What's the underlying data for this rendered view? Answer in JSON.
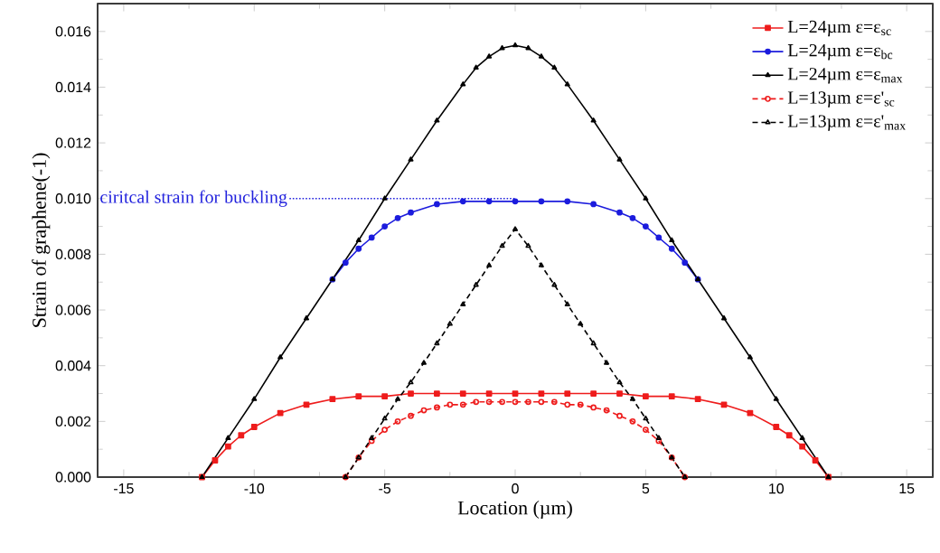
{
  "chart_data": {
    "type": "line",
    "xlabel": "Location (µm)",
    "ylabel": "Strain of graphene(-1)",
    "xlim": [
      -16,
      16
    ],
    "xticks": [
      -15,
      -10,
      -5,
      0,
      5,
      10,
      15
    ],
    "ylim": [
      0,
      0.017
    ],
    "yticks": [
      {
        "value": 0,
        "label": "0.000"
      },
      {
        "value": 0.002,
        "label": "0.002"
      },
      {
        "value": 0.004,
        "label": "0.004"
      },
      {
        "value": 0.006,
        "label": "0.006"
      },
      {
        "value": 0.008,
        "label": "0.008"
      },
      {
        "value": 0.01,
        "label": "0.010"
      },
      {
        "value": 0.012,
        "label": "0.012"
      },
      {
        "value": 0.014,
        "label": "0.014"
      },
      {
        "value": 0.016,
        "label": "0.016"
      }
    ],
    "legend": "top right",
    "ref_lines": [
      {
        "axis": "y",
        "value": 0.01,
        "label": "ciritcal strain for buckling",
        "color": "#2222dd",
        "line_style": "dotted"
      }
    ],
    "series": [
      {
        "name": "L=24µm  ε=ε$_{sc}$",
        "color": "#ee1c1c",
        "marker": "square",
        "line_style": "solid",
        "x": [
          -12,
          -11.5,
          -11,
          -10.5,
          -10,
          -9,
          -8,
          -7,
          -6,
          -5,
          -4,
          -3,
          -2,
          -1,
          0,
          1,
          2,
          3,
          4,
          5,
          6,
          7,
          8,
          9,
          10,
          10.5,
          11,
          11.5,
          12
        ],
        "values": [
          0,
          0.0006,
          0.0011,
          0.0015,
          0.0018,
          0.0023,
          0.0026,
          0.0028,
          0.0029,
          0.0029,
          0.003,
          0.003,
          0.003,
          0.003,
          0.003,
          0.003,
          0.003,
          0.003,
          0.003,
          0.0029,
          0.0029,
          0.0028,
          0.0026,
          0.0023,
          0.0018,
          0.0015,
          0.0011,
          0.0006,
          0
        ]
      },
      {
        "name": "L=24µm  ε=ε$_{bc}$",
        "color": "#1c1cdd",
        "marker": "circle",
        "line_style": "solid",
        "x": [
          -7,
          -6.5,
          -6,
          -5.5,
          -5,
          -4.5,
          -4,
          -3,
          -2,
          -1,
          0,
          1,
          2,
          3,
          4,
          4.5,
          5,
          5.5,
          6,
          6.5,
          7
        ],
        "values": [
          0.0071,
          0.0077,
          0.0082,
          0.0086,
          0.009,
          0.0093,
          0.0095,
          0.0098,
          0.0099,
          0.0099,
          0.0099,
          0.0099,
          0.0099,
          0.0098,
          0.0095,
          0.0093,
          0.009,
          0.0086,
          0.0082,
          0.0077,
          0.0071
        ]
      },
      {
        "name": "L=24µm  ε=ε$_{max}$",
        "color": "#000000",
        "marker": "triangle",
        "line_style": "solid",
        "x": [
          -12,
          -11,
          -10,
          -9,
          -8,
          -7,
          -6,
          -5,
          -4,
          -3,
          -2,
          -1.5,
          -1,
          -0.5,
          0,
          0.5,
          1,
          1.5,
          2,
          3,
          4,
          5,
          6,
          7,
          8,
          9,
          10,
          11,
          12
        ],
        "values": [
          0,
          0.0014,
          0.0028,
          0.0043,
          0.0057,
          0.0071,
          0.0085,
          0.01,
          0.0114,
          0.0128,
          0.0141,
          0.0147,
          0.0151,
          0.0154,
          0.0155,
          0.0154,
          0.0151,
          0.0147,
          0.0141,
          0.0128,
          0.0114,
          0.01,
          0.0085,
          0.0071,
          0.0057,
          0.0043,
          0.0028,
          0.0014,
          0
        ]
      },
      {
        "name": "L=13µm  ε=ε'$_{sc}$",
        "color": "#ee1c1c",
        "marker": "circle",
        "line_style": "dashed",
        "x": [
          -6.5,
          -6,
          -5.5,
          -5,
          -4.5,
          -4,
          -3.5,
          -3,
          -2.5,
          -2,
          -1.5,
          -1,
          -0.5,
          0,
          0.5,
          1,
          1.5,
          2,
          2.5,
          3,
          3.5,
          4,
          4.5,
          5,
          5.5,
          6,
          6.5
        ],
        "values": [
          0,
          0.0007,
          0.0013,
          0.0017,
          0.002,
          0.0022,
          0.0024,
          0.0025,
          0.0026,
          0.0026,
          0.0027,
          0.0027,
          0.0027,
          0.0027,
          0.0027,
          0.0027,
          0.0027,
          0.0026,
          0.0026,
          0.0025,
          0.0024,
          0.0022,
          0.002,
          0.0017,
          0.0013,
          0.0007,
          0
        ]
      },
      {
        "name": "L=13µm  ε=ε'$_{max}$",
        "color": "#000000",
        "marker": "triangle",
        "line_style": "dashed",
        "x": [
          -6.5,
          -6,
          -5.5,
          -5,
          -4.5,
          -4,
          -3.5,
          -3,
          -2.5,
          -2,
          -1.5,
          -1,
          -0.5,
          0,
          0.5,
          1,
          1.5,
          2,
          2.5,
          3,
          3.5,
          4,
          4.5,
          5,
          5.5,
          6,
          6.5
        ],
        "values": [
          0,
          0.0007,
          0.0014,
          0.0021,
          0.0028,
          0.0034,
          0.0041,
          0.0048,
          0.0055,
          0.0062,
          0.0069,
          0.0076,
          0.0083,
          0.0089,
          0.0083,
          0.0076,
          0.0069,
          0.0062,
          0.0055,
          0.0048,
          0.0041,
          0.0034,
          0.0028,
          0.0021,
          0.0014,
          0.0007,
          0
        ]
      }
    ]
  }
}
